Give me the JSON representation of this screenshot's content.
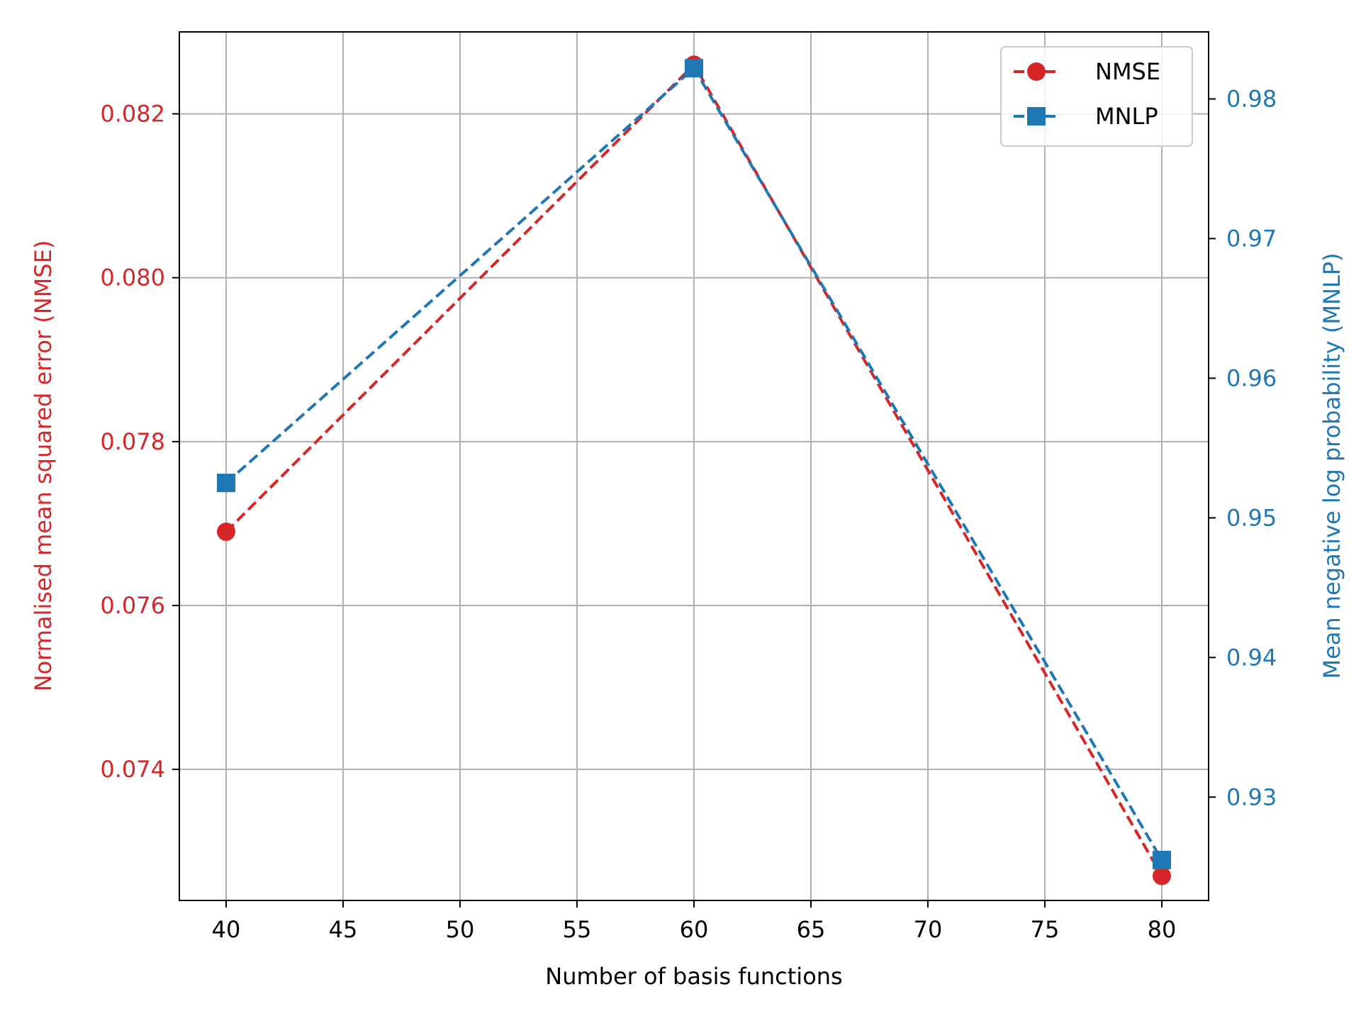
{
  "chart_data": {
    "type": "line",
    "xlabel": "Number of basis functions",
    "x": [
      40,
      60,
      80
    ],
    "xlim": [
      38,
      82
    ],
    "xticks": [
      40,
      45,
      50,
      55,
      60,
      65,
      70,
      75,
      80
    ],
    "grid": true,
    "legend_placement": "top-right",
    "series": [
      {
        "name": "NMSE",
        "axis": "left",
        "marker": "circle",
        "linestyle": "dashed",
        "color": "#d62728",
        "values": [
          0.0769,
          0.0826,
          0.0727
        ]
      },
      {
        "name": "MNLP",
        "axis": "right",
        "marker": "square",
        "linestyle": "dashed",
        "color": "#1f77b4",
        "values": [
          0.9525,
          0.9822,
          0.9255
        ]
      }
    ],
    "y_left": {
      "label": "Normalised mean squared error (NMSE)",
      "color": "#d62728",
      "lim": [
        0.0724,
        0.083
      ],
      "ticks": [
        0.074,
        0.076,
        0.078,
        0.08,
        0.082
      ],
      "tick_labels": [
        "0.074",
        "0.076",
        "0.078",
        "0.080",
        "0.082"
      ]
    },
    "y_right": {
      "label": "Mean negative log probability (MNLP)",
      "color": "#1f77b4",
      "lim": [
        0.9226,
        0.9848
      ],
      "ticks": [
        0.93,
        0.94,
        0.95,
        0.96,
        0.97,
        0.98
      ],
      "tick_labels": [
        "0.93",
        "0.94",
        "0.95",
        "0.96",
        "0.97",
        "0.98"
      ]
    }
  }
}
